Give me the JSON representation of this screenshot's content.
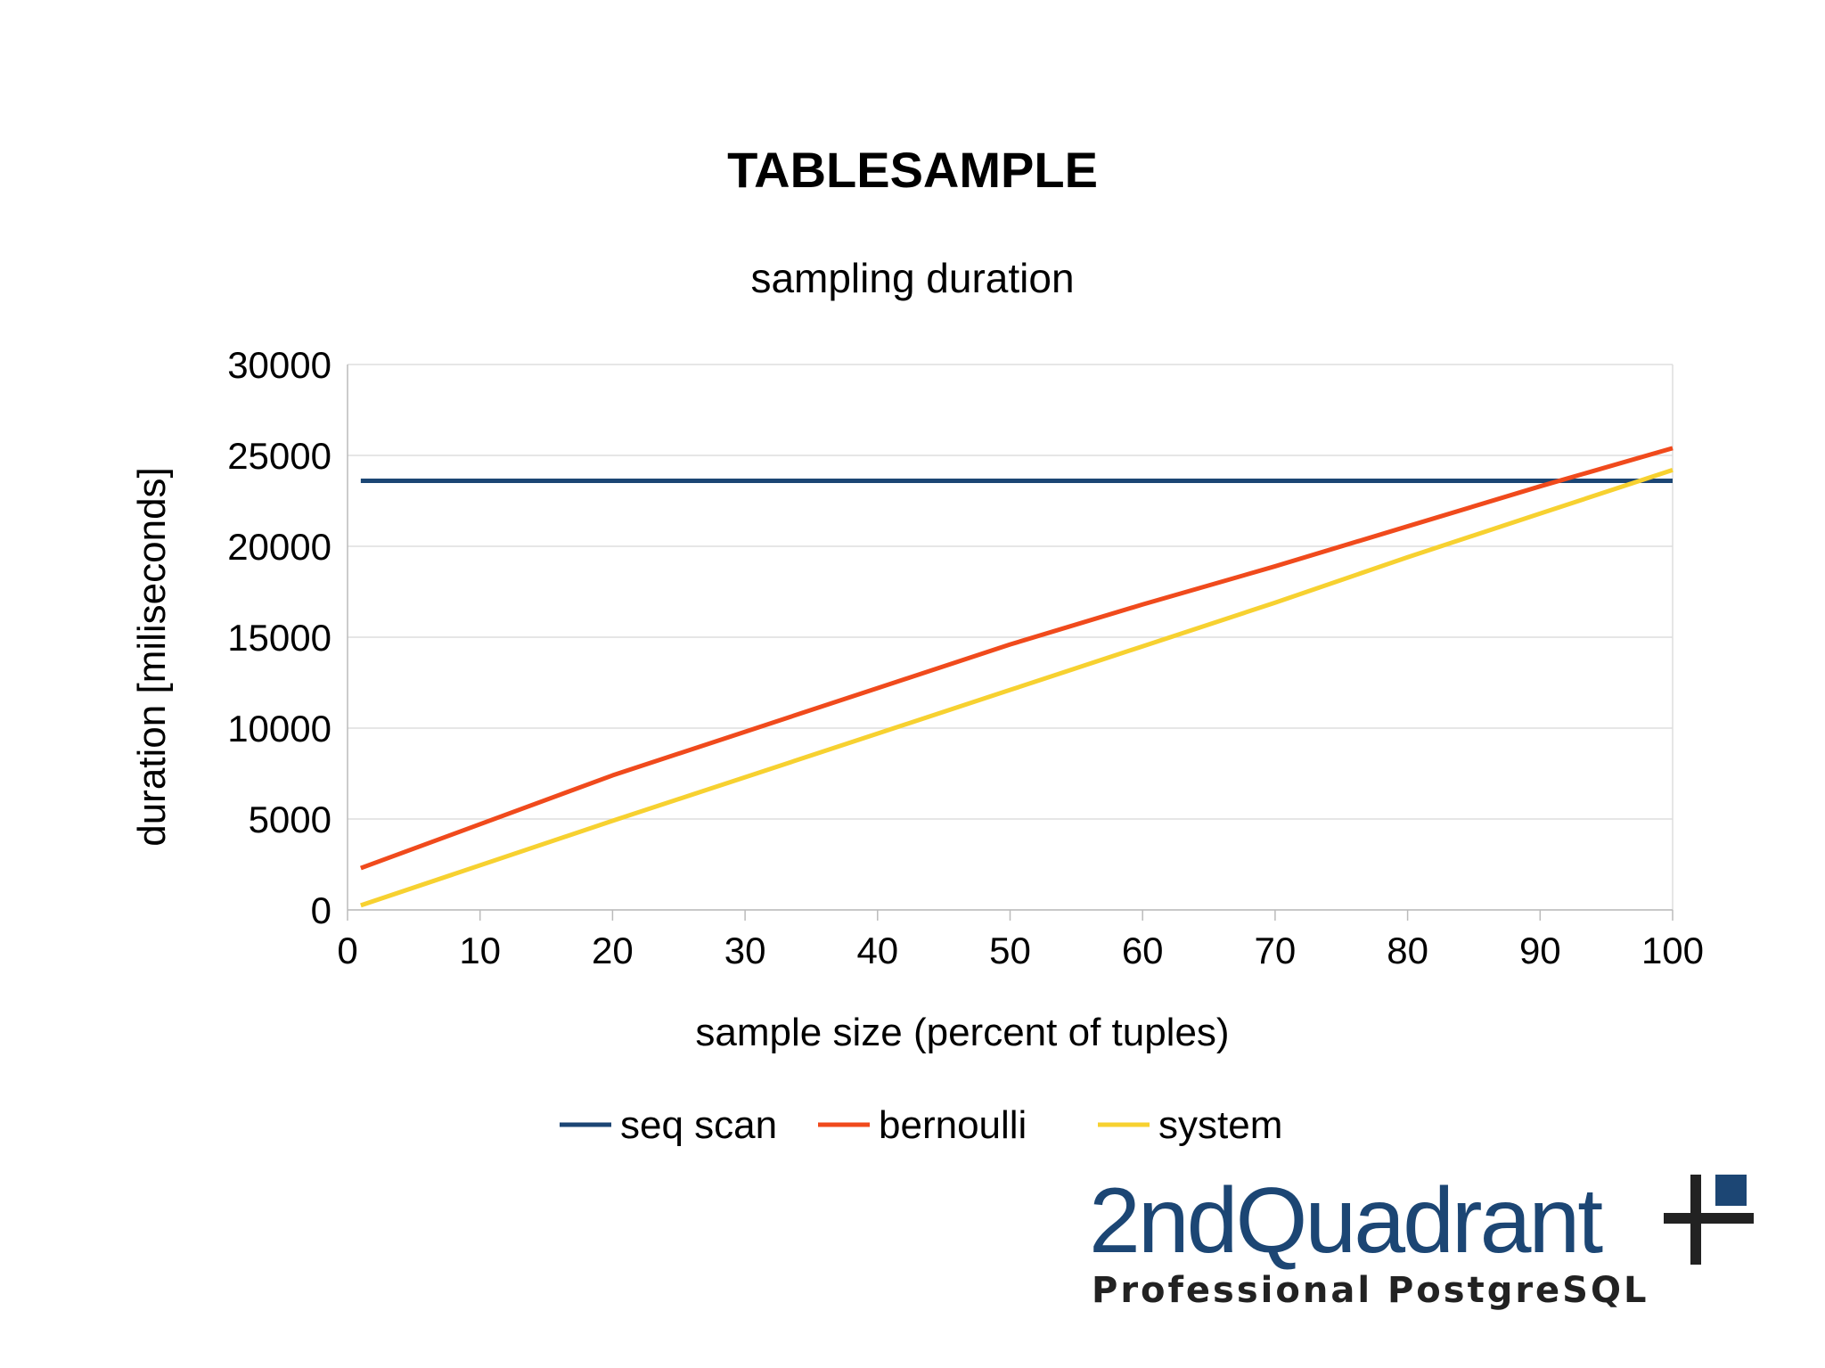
{
  "chart_data": {
    "type": "line",
    "title": "TABLESAMPLE",
    "subtitle": "sampling duration",
    "xlabel": "sample size (percent of tuples)",
    "ylabel": "duration [miliseconds]",
    "xlim": [
      0,
      100
    ],
    "ylim": [
      0,
      30000
    ],
    "x_ticks": [
      0,
      10,
      20,
      30,
      40,
      50,
      60,
      70,
      80,
      90,
      100
    ],
    "y_ticks": [
      0,
      5000,
      10000,
      15000,
      20000,
      25000,
      30000
    ],
    "grid": "horizontal",
    "legend_position": "bottom",
    "x": [
      1,
      20,
      30,
      40,
      50,
      60,
      70,
      80,
      90,
      100
    ],
    "series": [
      {
        "name": "seq scan",
        "color": "#1c4674",
        "values": [
          23600,
          23600,
          23600,
          23600,
          23600,
          23600,
          23600,
          23600,
          23600,
          23600
        ]
      },
      {
        "name": "bernoulli",
        "color": "#f04a1c",
        "values": [
          2300,
          7400,
          9800,
          12200,
          14600,
          16800,
          18900,
          21100,
          23300,
          25400
        ]
      },
      {
        "name": "system",
        "color": "#f7d130",
        "values": [
          250,
          4900,
          7300,
          9700,
          12100,
          14500,
          16900,
          19400,
          21800,
          24200
        ]
      }
    ]
  },
  "branding": {
    "name": "2ndQuadrant",
    "tagline": "Professional PostgreSQL",
    "colors": {
      "primary": "#1c4674",
      "secondary": "#222222"
    }
  }
}
